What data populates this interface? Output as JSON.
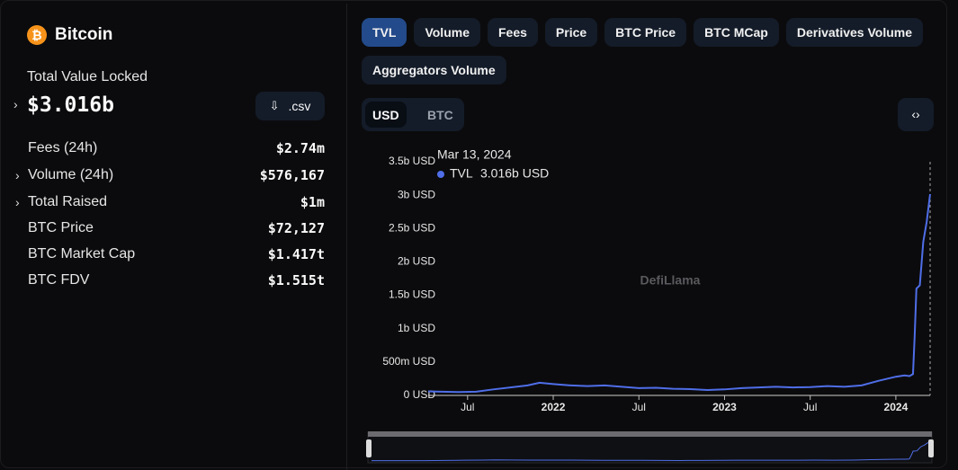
{
  "header": {
    "title": "Bitcoin"
  },
  "tvl": {
    "label": "Total Value Locked",
    "value": "$3.016b",
    "download": ".csv"
  },
  "stats": [
    {
      "label": "Fees (24h)",
      "value": "$2.74m"
    },
    {
      "label": "Volume (24h)",
      "value": "$576,167"
    },
    {
      "label": "Total Raised",
      "value": "$1m"
    },
    {
      "label": "BTC Price",
      "value": "$72,127"
    },
    {
      "label": "BTC Market Cap",
      "value": "$1.417t"
    },
    {
      "label": "BTC FDV",
      "value": "$1.515t"
    }
  ],
  "tabs": [
    "TVL",
    "Volume",
    "Fees",
    "Price",
    "BTC Price",
    "BTC MCap",
    "Derivatives Volume",
    "Aggregators Volume"
  ],
  "currency": [
    "USD",
    "BTC"
  ],
  "watermark": "DefiLlama",
  "chart_data": {
    "type": "line",
    "x": [
      2021.27,
      2021.35,
      2021.45,
      2021.55,
      2021.65,
      2021.75,
      2021.85,
      2021.92,
      2022.0,
      2022.1,
      2022.2,
      2022.3,
      2022.4,
      2022.5,
      2022.6,
      2022.7,
      2022.8,
      2022.9,
      2023.0,
      2023.1,
      2023.2,
      2023.3,
      2023.4,
      2023.5,
      2023.6,
      2023.7,
      2023.8,
      2023.9,
      2024.0,
      2024.05,
      2024.08,
      2024.1,
      2024.11,
      2024.12,
      2024.14,
      2024.16,
      2024.18,
      2024.2
    ],
    "series": [
      {
        "name": "TVL",
        "color": "#4f6ee8",
        "values": [
          60000000,
          55000000,
          50000000,
          55000000,
          90000000,
          120000000,
          150000000,
          190000000,
          170000000,
          150000000,
          140000000,
          150000000,
          130000000,
          110000000,
          115000000,
          100000000,
          95000000,
          80000000,
          90000000,
          110000000,
          120000000,
          130000000,
          120000000,
          125000000,
          140000000,
          130000000,
          150000000,
          220000000,
          280000000,
          300000000,
          290000000,
          320000000,
          900000000,
          1600000000,
          1650000000,
          2300000000,
          2600000000,
          3016000000
        ]
      }
    ],
    "xlim": [
      2021.27,
      2024.2
    ],
    "xticks": [
      {
        "value": 2021.5,
        "label": "Jul"
      },
      2022,
      {
        "value": 2022.5,
        "label": "Jul"
      },
      2023,
      {
        "value": 2023.5,
        "label": "Jul"
      },
      2024
    ],
    "ylim": [
      0,
      3500000000
    ],
    "yticks": [
      {
        "value": 0,
        "label": "0 USD"
      },
      {
        "value": 500000000,
        "label": "500m USD"
      },
      {
        "value": 1000000000,
        "label": "1b USD"
      },
      {
        "value": 1500000000,
        "label": "1.5b USD"
      },
      {
        "value": 2000000000,
        "label": "2b USD"
      },
      {
        "value": 2500000000,
        "label": "2.5b USD"
      },
      {
        "value": 3000000000,
        "label": "3b USD"
      },
      {
        "value": 3500000000,
        "label": "3.5b USD"
      }
    ],
    "tooltip": {
      "date": "Mar 13, 2024",
      "value_label": "3.016b USD"
    }
  }
}
